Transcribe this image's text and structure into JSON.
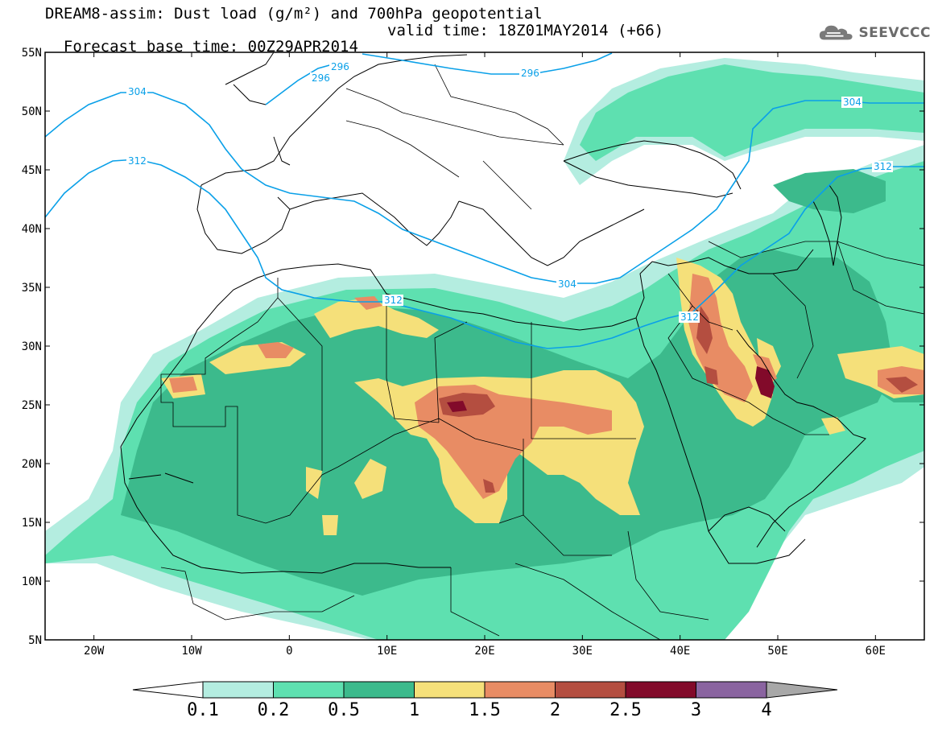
{
  "header": {
    "line1": "DREAM8-assim: Dust load (g/m²) and 700hPa geopotential",
    "line2_base": "Forecast base time: 00Z29APR2014",
    "line2_valid": "valid time: 18Z01MAY2014 (+66)"
  },
  "logo": {
    "text": "SEEVCCC",
    "icon": "cloud-icon"
  },
  "axes": {
    "lat_labels": [
      "55N",
      "50N",
      "45N",
      "40N",
      "35N",
      "30N",
      "25N",
      "20N",
      "15N",
      "10N",
      "5N"
    ],
    "lon_labels": [
      "20W",
      "10W",
      "0",
      "10E",
      "20E",
      "30E",
      "40E",
      "50E",
      "60E"
    ],
    "lon_range": [
      -25,
      65
    ],
    "lat_range": [
      5,
      55
    ]
  },
  "isolines": [
    {
      "value": "296",
      "color": "#0aa0e8"
    },
    {
      "value": "304",
      "color": "#0aa0e8"
    },
    {
      "value": "312",
      "color": "#0aa0e8"
    }
  ],
  "colorbar": {
    "labels": [
      "0.1",
      "0.2",
      "0.5",
      "1",
      "1.5",
      "2",
      "2.5",
      "3",
      "4"
    ],
    "colors": [
      "#b4ede0",
      "#5ee0b0",
      "#3cba8c",
      "#f5e07a",
      "#e88c64",
      "#b44e40",
      "#820a2a",
      "#8a64a0"
    ],
    "arrow_low_color": "#ffffff",
    "arrow_high_color": "#a8a8a8"
  },
  "dust_colors": {
    "c01": "#b4ede0",
    "c02": "#5ee0b0",
    "c05": "#3cba8c",
    "c1": "#f5e07a",
    "c15": "#e88c64",
    "c2": "#b44e40",
    "c25": "#820a2a"
  }
}
